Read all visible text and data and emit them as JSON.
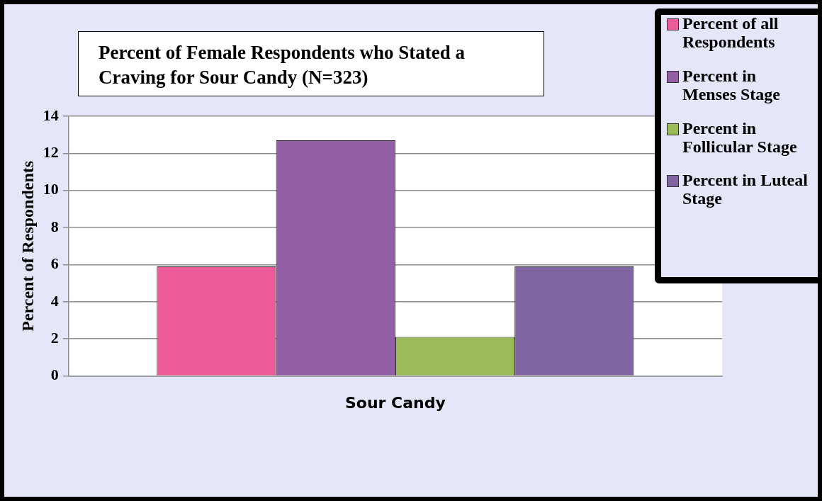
{
  "chart_data": {
    "type": "bar",
    "title": "Percent of Female Respondents who Stated a Craving for Sour Candy (N=323)",
    "ylabel": "Percent of Respondents",
    "categories": [
      "Sour Candy"
    ],
    "series": [
      {
        "name": "Percent of all Respondents",
        "color": "#ec5c99",
        "values": [
          5.9
        ]
      },
      {
        "name": "Percent in Menses Stage",
        "color": "#925fa5",
        "values": [
          12.7
        ]
      },
      {
        "name": "Percent in Follicular Stage",
        "color": "#9bbb59",
        "values": [
          2.1
        ]
      },
      {
        "name": "Percent in Luteal Stage",
        "color": "#7f65a1",
        "values": [
          5.9
        ]
      }
    ],
    "ylim": [
      0,
      14
    ],
    "yticks": [
      0,
      2,
      4,
      6,
      8,
      10,
      12,
      14
    ],
    "grid": "y",
    "legend": "top right"
  }
}
